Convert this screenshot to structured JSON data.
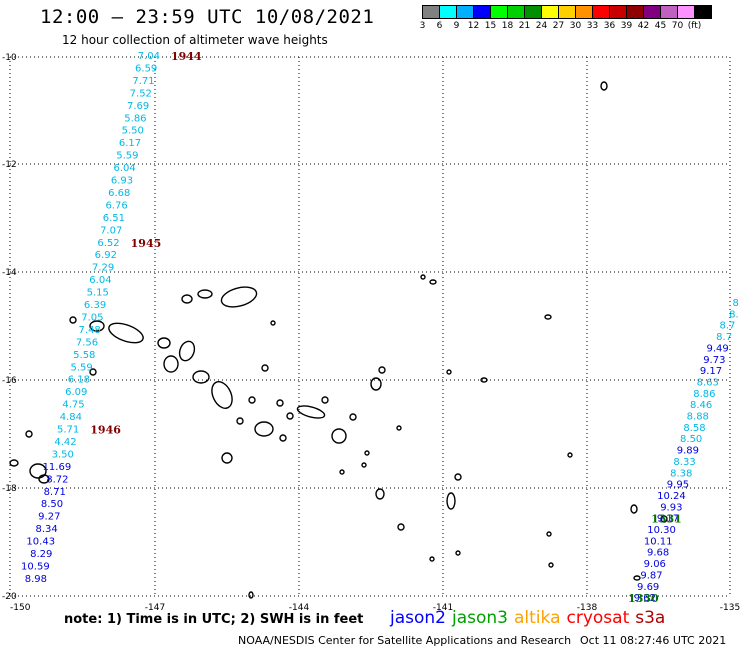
{
  "header": {
    "title": "12:00 — 23:59 UTC 10/08/2021",
    "subtitle": "12 hour collection of altimeter wave heights"
  },
  "colorbar": {
    "colors": [
      "#808080",
      "#00ffff",
      "#00b0ff",
      "#0000ff",
      "#00ff00",
      "#00d000",
      "#009000",
      "#ffff00",
      "#ffd000",
      "#ff9000",
      "#ff0000",
      "#c80000",
      "#900000",
      "#800080",
      "#c060c0",
      "#ff90ff",
      "#000000"
    ],
    "labels": [
      "3",
      "6",
      "9",
      "12",
      "15",
      "18",
      "21",
      "24",
      "27",
      "30",
      "33",
      "36",
      "39",
      "42",
      "45",
      "70",
      "(ft)"
    ]
  },
  "axes": {
    "lat_labels": [
      "-10",
      "-12",
      "-14",
      "-16",
      "-18",
      "-20"
    ],
    "lon_labels": [
      "-150",
      "-147",
      "-144",
      "-141",
      "-138",
      "-135"
    ]
  },
  "tracks": [
    {
      "name": "track-west",
      "values": [
        "7.04",
        "6.59",
        "7.71",
        "7.52",
        "7.69",
        "5.86",
        "5.50",
        "6.17",
        "5.59",
        "6.04",
        "6.93",
        "6.68",
        "6.76",
        "6.51",
        "7.07",
        "6.52",
        "6.92",
        "7.29",
        "6.04",
        "5.15",
        "6.39",
        "7.05",
        "7.48",
        "7.56",
        "5.58",
        "5.59",
        "6.18",
        "6.09",
        "4.75",
        "4.84",
        "5.71",
        "4.42",
        "3.50",
        "11.69",
        "8.72",
        "8.71",
        "8.50",
        "9.27",
        "8.34",
        "10.43",
        "8.29",
        "10.59",
        "8.98"
      ],
      "colors": [
        "c",
        "c",
        "c",
        "c",
        "c",
        "c",
        "c",
        "c",
        "c",
        "c",
        "c",
        "c",
        "c",
        "c",
        "c",
        "c",
        "c",
        "c",
        "c",
        "c",
        "c",
        "c",
        "c",
        "c",
        "c",
        "c",
        "c",
        "c",
        "c",
        "c",
        "c",
        "c",
        "c",
        "b",
        "b",
        "b",
        "b",
        "b",
        "b",
        "b",
        "b",
        "b",
        "b"
      ],
      "times": [
        {
          "label": "1944",
          "row": 0
        },
        {
          "label": "1945",
          "row": 15
        },
        {
          "label": "1946",
          "row": 30
        }
      ]
    },
    {
      "name": "track-east",
      "values": [
        "8.",
        "8.",
        "8.7",
        "8.7",
        "9.49",
        "9.73",
        "9.17",
        "8.63",
        "8.86",
        "8.46",
        "8.88",
        "8.58",
        "8.50",
        "9.89",
        "8.33",
        "8.38",
        "9.95",
        "10.24",
        "9.93",
        "9.17",
        "10.30",
        "10.11",
        "9.68",
        "9.06",
        "9.87",
        "9.69",
        "9.62"
      ],
      "colors": [
        "c",
        "c",
        "c",
        "c",
        "b",
        "b",
        "b",
        "c",
        "c",
        "c",
        "c",
        "c",
        "c",
        "b",
        "c",
        "c",
        "b",
        "b",
        "b",
        "b",
        "b",
        "b",
        "b",
        "b",
        "b",
        "b",
        "b"
      ],
      "times": [
        {
          "label": "1331",
          "row": 19
        },
        {
          "label": "1330",
          "row": 26
        }
      ]
    }
  ],
  "note": "note:  1) Time is in UTC; 2) SWH is in feet",
  "satellites": [
    {
      "name": "jason2",
      "color": "#0000ff"
    },
    {
      "name": "jason3",
      "color": "#00a000"
    },
    {
      "name": "altika",
      "color": "#ffa000"
    },
    {
      "name": "cryosat",
      "color": "#ff0000"
    },
    {
      "name": "s3a",
      "color": "#b00000"
    }
  ],
  "footer": {
    "org": "NOAA/NESDIS Center for Satellite Applications and Research",
    "timestamp": "Oct 11 08:27:46 UTC 2021"
  }
}
